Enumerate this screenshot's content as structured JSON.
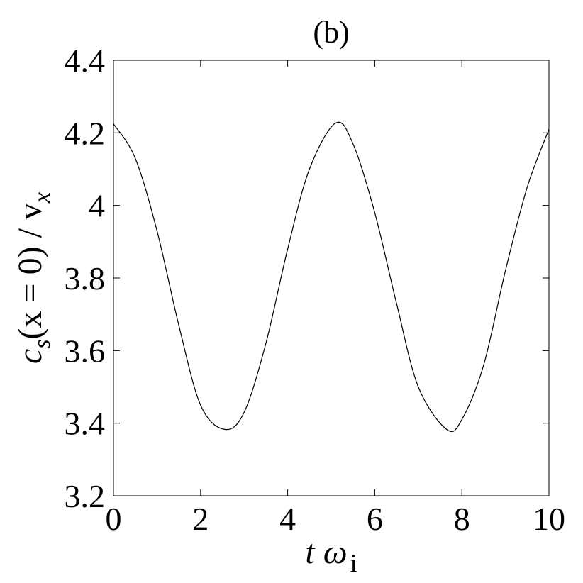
{
  "chart_data": {
    "type": "line",
    "title": "(b)",
    "xlabel": {
      "main": "t ω",
      "subscript": "i"
    },
    "ylabel": {
      "main": "c",
      "subscript": "s",
      "rest": "(x = 0) / v",
      "subscript2": "x"
    },
    "xlim": [
      0,
      10
    ],
    "ylim": [
      3.2,
      4.4
    ],
    "xticks": [
      0,
      2,
      4,
      6,
      8,
      10
    ],
    "xtick_labels": [
      "0",
      "2",
      "4",
      "6",
      "8",
      "10"
    ],
    "yticks": [
      3.2,
      3.4,
      3.6,
      3.8,
      4.0,
      4.2,
      4.4
    ],
    "ytick_labels": [
      "3.2",
      "3.4",
      "3.6",
      "3.8",
      "4",
      "4.2",
      "4.4"
    ],
    "grid": false,
    "series": [
      {
        "color": "#000000",
        "x": [
          0,
          0.5,
          1.0,
          1.5,
          2.0,
          2.55,
          3.0,
          3.5,
          4.0,
          4.5,
          5.1,
          5.5,
          6.0,
          6.5,
          7.0,
          7.65,
          8.0,
          8.5,
          9.0,
          9.5,
          10.0
        ],
        "y": [
          4.225,
          4.13,
          3.93,
          3.67,
          3.45,
          3.383,
          3.43,
          3.62,
          3.88,
          4.1,
          4.227,
          4.17,
          3.98,
          3.73,
          3.5,
          3.383,
          3.41,
          3.56,
          3.82,
          4.05,
          4.21
        ]
      }
    ]
  }
}
